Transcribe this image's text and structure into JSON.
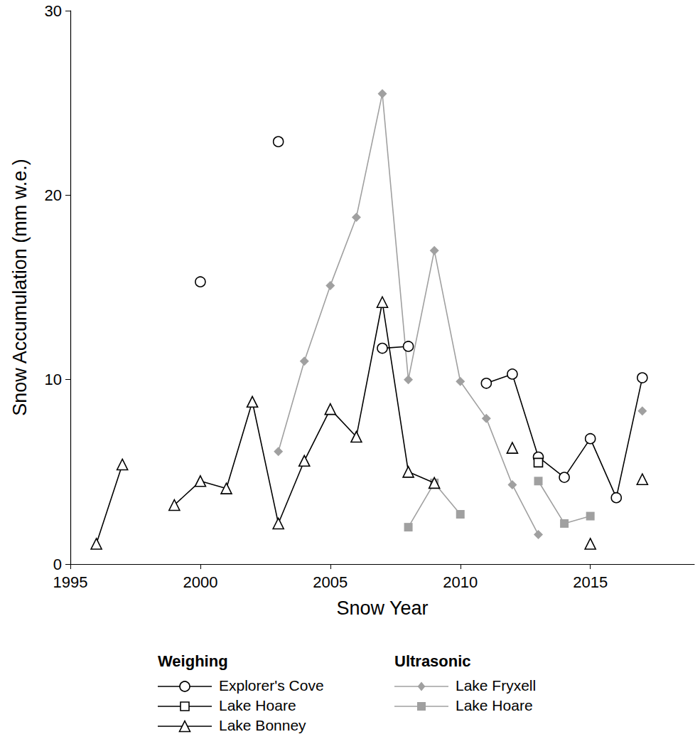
{
  "chart_data": {
    "type": "line",
    "x_label": "Snow Year",
    "y_label": "Snow Accumulation (mm w.e.)",
    "x": [
      1996,
      1997,
      1998,
      1999,
      2000,
      2001,
      2002,
      2003,
      2004,
      2005,
      2006,
      2007,
      2008,
      2009,
      2010,
      2011,
      2012,
      2013,
      2014,
      2015,
      2016,
      2017
    ],
    "series": [
      {
        "name": "Explorer's Cove",
        "group": "Weighing",
        "color": "#000000",
        "marker": "circle-open",
        "line_style": "solid",
        "values": [
          null,
          null,
          null,
          null,
          15.3,
          null,
          null,
          22.9,
          null,
          null,
          null,
          11.7,
          11.8,
          null,
          null,
          9.8,
          10.3,
          5.8,
          4.7,
          6.8,
          3.6,
          10.1
        ]
      },
      {
        "name": "Lake Hoare",
        "group": "Weighing",
        "color": "#000000",
        "marker": "square-open",
        "line_style": "solid",
        "values": [
          null,
          null,
          null,
          null,
          null,
          null,
          null,
          null,
          null,
          null,
          null,
          null,
          null,
          null,
          null,
          null,
          null,
          5.5,
          null,
          null,
          null,
          null
        ]
      },
      {
        "name": "Lake Bonney",
        "group": "Weighing",
        "color": "#000000",
        "marker": "triangle-open",
        "line_style": "solid",
        "values": [
          1.1,
          5.4,
          null,
          3.2,
          4.5,
          4.1,
          8.8,
          2.2,
          5.6,
          8.4,
          6.9,
          14.2,
          5.0,
          4.4,
          null,
          null,
          6.3,
          null,
          null,
          1.1,
          null,
          4.6
        ]
      },
      {
        "name": "Lake Fryxell",
        "group": "Ultrasonic",
        "color": "#a0a0a0",
        "marker": "diamond",
        "line_style": "solid",
        "values": [
          null,
          null,
          null,
          null,
          null,
          null,
          null,
          6.1,
          11.0,
          15.1,
          18.8,
          25.5,
          10.0,
          17.0,
          9.9,
          7.9,
          4.3,
          1.6,
          null,
          null,
          null,
          8.3
        ]
      },
      {
        "name": "Lake Hoare",
        "group": "Ultrasonic",
        "color": "#a0a0a0",
        "marker": "square",
        "line_style": "solid",
        "values": [
          null,
          null,
          null,
          null,
          null,
          null,
          null,
          null,
          null,
          null,
          null,
          null,
          2.0,
          4.4,
          2.7,
          null,
          null,
          4.5,
          2.2,
          2.6,
          null,
          null
        ]
      }
    ],
    "xlim": [
      1995,
      2019
    ],
    "xticks": [
      1995,
      2000,
      2005,
      2010,
      2015
    ],
    "ylim": [
      0,
      30
    ],
    "yticks": [
      0,
      10,
      20,
      30
    ],
    "grid": false
  }
}
